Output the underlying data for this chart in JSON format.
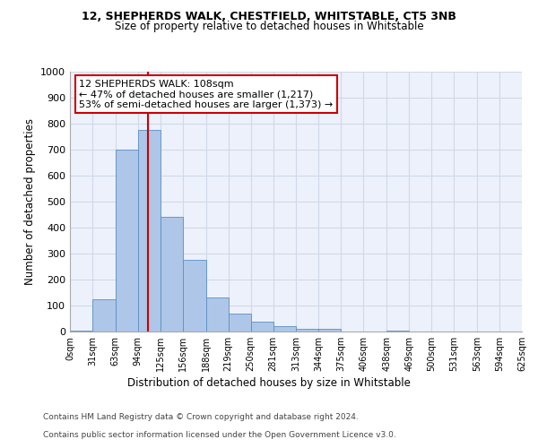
{
  "title1": "12, SHEPHERDS WALK, CHESTFIELD, WHITSTABLE, CT5 3NB",
  "title2": "Size of property relative to detached houses in Whitstable",
  "xlabel": "Distribution of detached houses by size in Whitstable",
  "ylabel": "Number of detached properties",
  "footer1": "Contains HM Land Registry data © Crown copyright and database right 2024.",
  "footer2": "Contains public sector information licensed under the Open Government Licence v3.0.",
  "bin_labels": [
    "0sqm",
    "31sqm",
    "63sqm",
    "94sqm",
    "125sqm",
    "156sqm",
    "188sqm",
    "219sqm",
    "250sqm",
    "281sqm",
    "313sqm",
    "344sqm",
    "375sqm",
    "406sqm",
    "438sqm",
    "469sqm",
    "500sqm",
    "531sqm",
    "563sqm",
    "594sqm",
    "625sqm"
  ],
  "bar_values": [
    5,
    125,
    700,
    775,
    440,
    275,
    130,
    70,
    37,
    22,
    11,
    11,
    0,
    0,
    5,
    0,
    0,
    0,
    0,
    0
  ],
  "bar_color": "#aec6e8",
  "bar_edge_color": "#5a8fc2",
  "property_size": 108,
  "property_label": "12 SHEPHERDS WALK: 108sqm",
  "pct_smaller": 47,
  "n_smaller": 1217,
  "pct_larger": 53,
  "n_larger": 1373,
  "vline_color": "#cc0000",
  "annotation_box_color": "#cc0000",
  "ylim": [
    0,
    1000
  ],
  "yticks": [
    0,
    100,
    200,
    300,
    400,
    500,
    600,
    700,
    800,
    900,
    1000
  ],
  "grid_color": "#d0d8e8",
  "bg_color": "#edf1fb"
}
